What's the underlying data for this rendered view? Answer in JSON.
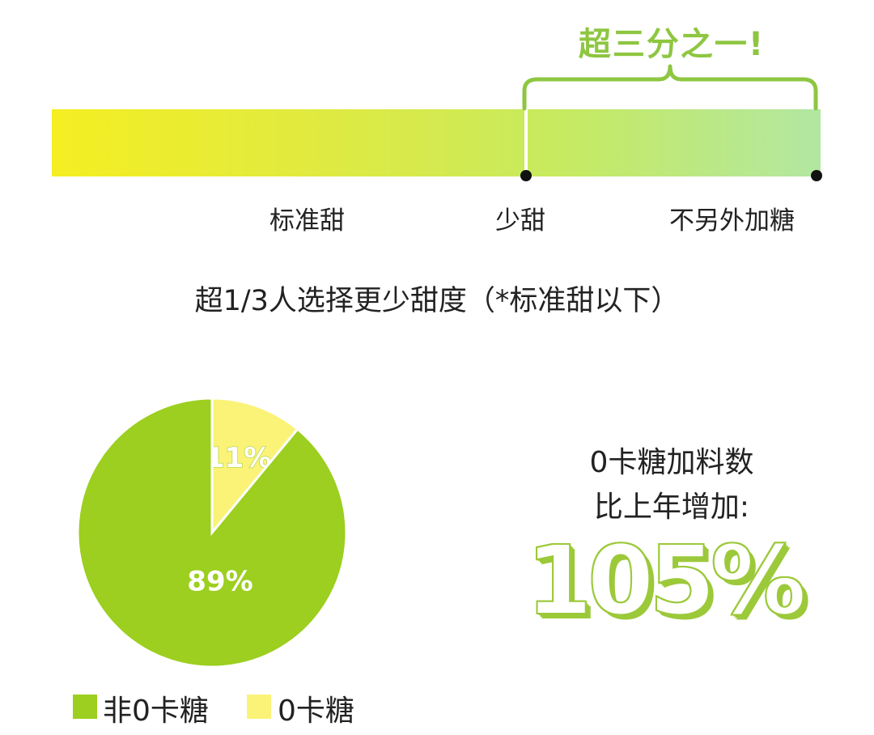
{
  "colors": {
    "bar_start": "#f5ee22",
    "bar_end": "#b2e7a2",
    "accent_green": "#8ec641",
    "pie_main": "#9ccf1f",
    "pie_small": "#fbf378",
    "dot": "#111111"
  },
  "sweetness_scale": {
    "ticks": [
      "标准甜",
      "少甜",
      "不另外加糖"
    ],
    "brace_label": "超三分之一!"
  },
  "caption": "超1/3人选择更少甜度（*标准甜以下）",
  "stat": {
    "line1": "0卡糖加料数",
    "line2": "比上年增加:",
    "value": "105%"
  },
  "chart_data": {
    "type": "pie",
    "title": "",
    "slices": [
      {
        "label": "非0卡糖",
        "value": 89,
        "display": "89%",
        "color": "#9ccf1f"
      },
      {
        "label": "0卡糖",
        "value": 11,
        "display": "11%",
        "color": "#fbf378"
      }
    ],
    "legend_position": "bottom-left"
  }
}
